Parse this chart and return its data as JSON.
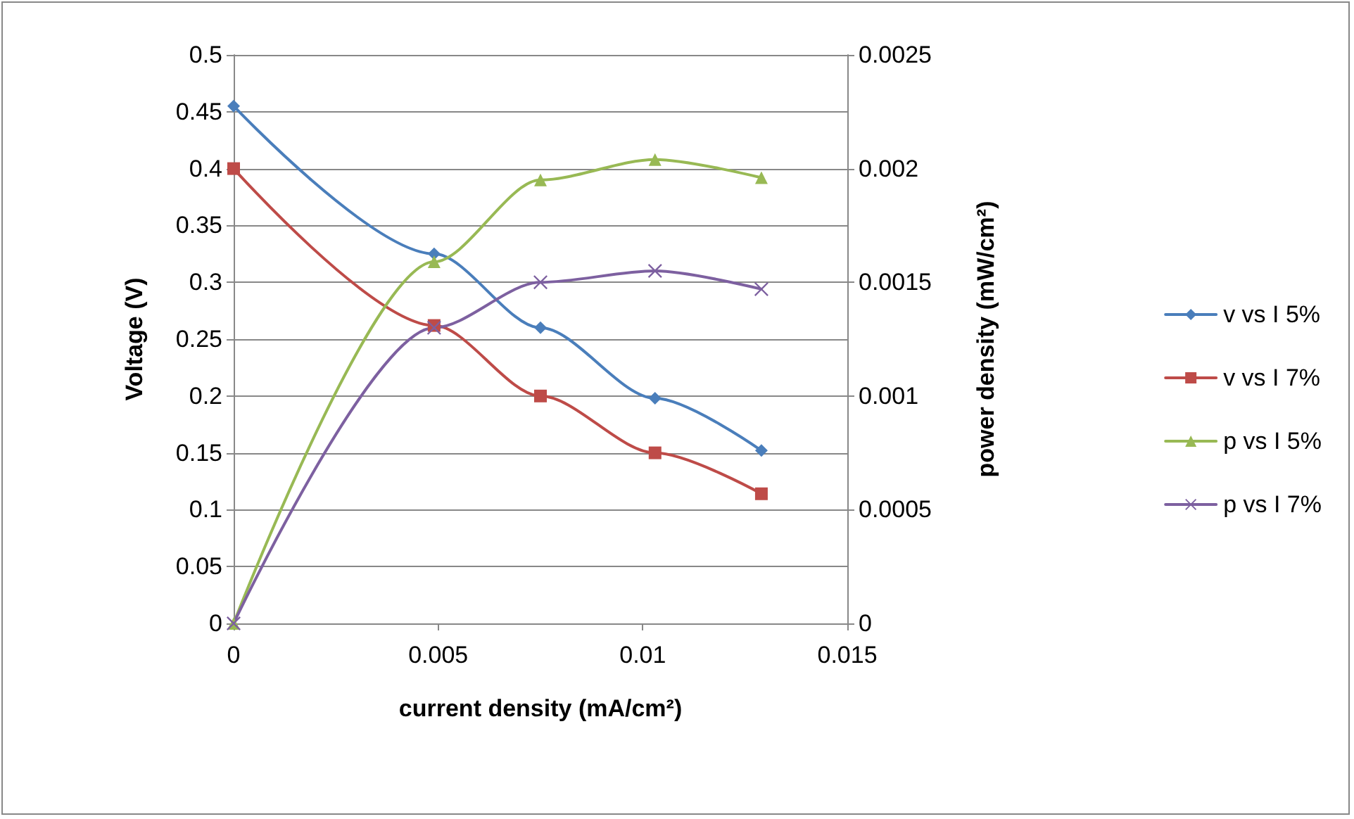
{
  "chart_data": {
    "type": "line",
    "xlabel": "current density (mA/cm²)",
    "ylabel": "Voltage (V)",
    "y2label": "power density (mW/cm²)",
    "x": [
      0,
      0.0049,
      0.0075,
      0.0103,
      0.0129
    ],
    "series": [
      {
        "name": "v vs I 5%",
        "color": "#4a7ebb",
        "marker": "diamond",
        "values": [
          0.455,
          0.325,
          0.26,
          0.198,
          0.152
        ]
      },
      {
        "name": "v vs I 7%",
        "color": "#be4b48",
        "marker": "square",
        "values": [
          0.4,
          0.262,
          0.2,
          0.15,
          0.114
        ]
      },
      {
        "name": "p vs I 5%",
        "color": "#98b954",
        "marker": "triangle",
        "axis": "y2",
        "values": [
          0,
          0.00159,
          0.00195,
          0.00204,
          0.00196
        ]
      },
      {
        "name": "p vs I 7%",
        "color": "#7d60a0",
        "marker": "cross",
        "axis": "y2",
        "values": [
          0,
          0.0013,
          0.0015,
          0.00155,
          0.00147
        ]
      }
    ],
    "xlim": [
      0,
      0.015
    ],
    "xticks": [
      0,
      0.005,
      0.01,
      0.015
    ],
    "ylim": [
      0,
      0.5
    ],
    "yticks": [
      0,
      0.05,
      0.1,
      0.15,
      0.2,
      0.25,
      0.3,
      0.35,
      0.4,
      0.45,
      0.5
    ],
    "y2lim": [
      0,
      0.0025
    ],
    "y2ticks": [
      0,
      0.0005,
      0.001,
      0.0015,
      0.002,
      0.0025
    ],
    "grid": "y",
    "legend": "right",
    "line_style": "solid"
  }
}
